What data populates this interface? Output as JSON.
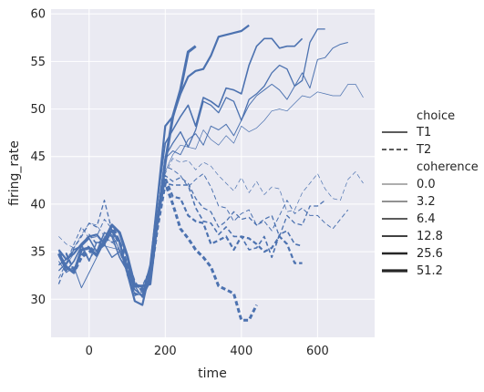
{
  "chart_data": {
    "type": "line",
    "xlabel": "time",
    "ylabel": "firing_rate",
    "xlim": [
      -100,
      750
    ],
    "ylim": [
      26,
      60.5
    ],
    "xticks": [
      0,
      200,
      400,
      600
    ],
    "yticks": [
      30,
      35,
      40,
      45,
      50,
      55,
      60
    ],
    "grid": true,
    "background": "#eaeaf2",
    "line_color": "#4c72b0",
    "legend": {
      "placement": "right",
      "choice_title": "choice",
      "choice_entries": [
        {
          "label": "T1",
          "dash": "solid"
        },
        {
          "label": "T2",
          "dash": "dashed"
        }
      ],
      "coherence_title": "coherence",
      "coherence_entries": [
        {
          "label": "0.0",
          "weight": 0.0
        },
        {
          "label": "3.2",
          "weight": 3.2
        },
        {
          "label": "6.4",
          "weight": 6.4
        },
        {
          "label": "12.8",
          "weight": 12.8
        },
        {
          "label": "25.6",
          "weight": 25.6
        },
        {
          "label": "51.2",
          "weight": 51.2
        }
      ]
    },
    "series": [
      {
        "choice": "T1",
        "coherence": 0.0,
        "x": [
          -80,
          -60,
          -40,
          -20,
          0,
          20,
          40,
          60,
          80,
          100,
          120,
          140,
          160,
          180,
          200,
          220,
          240,
          260,
          280,
          300,
          320,
          340,
          360,
          380,
          400,
          420,
          440,
          460,
          480,
          500,
          520,
          540,
          560,
          580,
          600,
          620,
          640,
          660,
          680,
          700,
          720
        ],
        "y": [
          35.0,
          33.6,
          34.8,
          35.8,
          34.2,
          35.2,
          35.6,
          35.4,
          35.2,
          33.2,
          31.6,
          31.2,
          33.4,
          38.6,
          43.4,
          45.2,
          46.2,
          46.0,
          45.8,
          47.8,
          46.8,
          46.2,
          47.2,
          46.4,
          48.2,
          47.6,
          48.0,
          48.8,
          49.8,
          50.0,
          49.8,
          50.6,
          51.4,
          51.2,
          51.8,
          51.6,
          51.4,
          51.4,
          52.6,
          52.6,
          51.2
        ]
      },
      {
        "choice": "T1",
        "coherence": 3.2,
        "x": [
          -80,
          -60,
          -40,
          -20,
          0,
          20,
          40,
          60,
          80,
          100,
          120,
          140,
          160,
          180,
          200,
          220,
          240,
          260,
          280,
          300,
          320,
          340,
          360,
          380,
          400,
          420,
          440,
          460,
          480,
          500,
          520,
          540,
          560,
          580,
          600,
          620,
          640,
          660,
          680
        ],
        "y": [
          34.0,
          32.8,
          33.4,
          31.2,
          32.8,
          34.4,
          36.4,
          36.8,
          35.2,
          32.8,
          30.6,
          30.4,
          32.2,
          37.8,
          44.8,
          45.6,
          45.2,
          46.8,
          47.4,
          46.2,
          48.2,
          47.8,
          48.4,
          47.2,
          48.8,
          50.4,
          51.4,
          52.0,
          52.6,
          52.0,
          51.0,
          52.4,
          53.8,
          52.2,
          55.2,
          55.4,
          56.4,
          56.8,
          57.0
        ]
      },
      {
        "choice": "T1",
        "coherence": 6.4,
        "x": [
          -80,
          -60,
          -40,
          -20,
          0,
          20,
          40,
          60,
          80,
          100,
          120,
          140,
          160,
          180,
          200,
          220,
          240,
          260,
          280,
          300,
          320,
          340,
          360,
          380,
          400,
          420,
          440,
          460,
          480,
          500,
          520,
          540,
          560,
          580,
          600,
          620
        ],
        "y": [
          33.0,
          33.8,
          35.2,
          35.6,
          34.0,
          36.0,
          35.8,
          34.4,
          35.0,
          33.6,
          31.4,
          30.2,
          31.8,
          39.0,
          45.0,
          46.4,
          47.6,
          46.0,
          47.8,
          50.8,
          50.4,
          49.6,
          51.2,
          50.8,
          48.8,
          51.0,
          51.6,
          52.4,
          53.8,
          54.6,
          54.2,
          52.4,
          53.0,
          57.0,
          58.4,
          58.4
        ]
      },
      {
        "choice": "T1",
        "coherence": 12.8,
        "x": [
          -80,
          -60,
          -40,
          -20,
          0,
          20,
          40,
          60,
          80,
          100,
          120,
          140,
          160,
          180,
          200,
          220,
          240,
          260,
          280,
          300,
          320,
          340,
          360,
          380,
          400,
          420,
          440,
          460,
          480,
          500,
          520,
          540,
          560
        ],
        "y": [
          34.6,
          33.0,
          34.0,
          35.6,
          36.4,
          35.0,
          37.0,
          36.6,
          34.4,
          33.0,
          31.0,
          30.4,
          33.6,
          40.4,
          46.4,
          47.8,
          49.2,
          50.4,
          48.2,
          51.2,
          50.8,
          50.2,
          52.2,
          52.0,
          51.6,
          54.6,
          56.6,
          57.4,
          57.4,
          56.4,
          56.6,
          56.6,
          57.4
        ]
      },
      {
        "choice": "T1",
        "coherence": 25.6,
        "x": [
          -80,
          -60,
          -40,
          -20,
          0,
          20,
          40,
          60,
          80,
          100,
          120,
          140,
          160,
          180,
          200,
          220,
          240,
          260,
          280,
          300,
          320,
          340,
          360,
          380,
          400,
          420
        ],
        "y": [
          35.2,
          34.2,
          34.8,
          35.8,
          36.6,
          36.8,
          35.8,
          37.2,
          36.0,
          32.8,
          29.8,
          29.4,
          33.0,
          40.6,
          48.2,
          49.2,
          51.6,
          53.4,
          54.0,
          54.2,
          55.6,
          57.6,
          57.8,
          58.0,
          58.2,
          58.8
        ]
      },
      {
        "choice": "T1",
        "coherence": 51.2,
        "x": [
          -80,
          -60,
          -40,
          -20,
          0,
          20,
          40,
          60,
          80,
          100,
          120,
          140,
          160,
          180,
          200,
          220,
          240,
          260,
          280
        ],
        "y": [
          34.8,
          33.4,
          32.8,
          35.2,
          35.4,
          34.6,
          36.2,
          37.8,
          37.0,
          34.6,
          31.4,
          31.4,
          31.6,
          38.4,
          44.4,
          49.2,
          52.0,
          56.0,
          56.6
        ]
      },
      {
        "choice": "T2",
        "coherence": 0.0,
        "x": [
          -80,
          -60,
          -40,
          -20,
          0,
          20,
          40,
          60,
          80,
          100,
          120,
          140,
          160,
          180,
          200,
          220,
          240,
          260,
          280,
          300,
          320,
          340,
          360,
          380,
          400,
          420,
          440,
          460,
          480,
          500,
          520,
          540,
          560,
          580,
          600,
          620,
          640,
          660,
          680,
          700,
          720
        ],
        "y": [
          36.6,
          35.8,
          35.4,
          36.8,
          38.0,
          37.8,
          36.6,
          36.0,
          35.2,
          33.8,
          31.4,
          31.0,
          33.4,
          38.4,
          43.2,
          44.8,
          44.4,
          44.6,
          43.6,
          44.4,
          44.0,
          43.0,
          42.2,
          41.4,
          42.8,
          41.2,
          42.4,
          41.0,
          41.8,
          41.6,
          39.2,
          39.4,
          41.2,
          42.2,
          43.2,
          41.6,
          40.6,
          40.4,
          42.6,
          43.4,
          42.2
        ]
      },
      {
        "choice": "T2",
        "coherence": 3.2,
        "x": [
          -80,
          -60,
          -40,
          -20,
          0,
          20,
          40,
          60,
          80,
          100,
          120,
          140,
          160,
          180,
          200,
          220,
          240,
          260,
          280,
          300,
          320,
          340,
          360,
          380,
          400,
          420,
          440,
          460,
          480,
          500,
          520,
          540,
          560,
          580,
          600,
          620,
          640,
          660,
          680
        ],
        "y": [
          32.2,
          33.8,
          35.8,
          37.6,
          36.4,
          36.6,
          38.4,
          37.4,
          36.2,
          34.4,
          32.0,
          30.6,
          32.8,
          39.0,
          44.0,
          43.6,
          43.0,
          41.8,
          42.6,
          43.2,
          41.8,
          39.8,
          39.6,
          38.2,
          39.0,
          39.4,
          37.8,
          38.2,
          37.2,
          38.8,
          40.4,
          39.0,
          39.6,
          38.8,
          38.8,
          38.0,
          37.4,
          38.4,
          39.4
        ]
      },
      {
        "choice": "T2",
        "coherence": 6.4,
        "x": [
          -80,
          -60,
          -40,
          -20,
          0,
          20,
          40,
          60,
          80,
          100,
          120,
          140,
          160,
          180,
          200,
          220,
          240,
          260,
          280,
          300,
          320,
          340,
          360,
          380,
          400,
          420,
          440,
          460,
          480,
          500,
          520,
          540,
          560,
          580,
          600,
          620
        ],
        "y": [
          31.6,
          33.6,
          35.4,
          36.6,
          38.0,
          37.6,
          40.4,
          37.2,
          35.0,
          33.0,
          31.6,
          31.4,
          33.2,
          38.0,
          43.0,
          42.4,
          42.8,
          42.2,
          40.6,
          39.6,
          39.2,
          37.6,
          38.2,
          39.2,
          38.4,
          38.6,
          37.8,
          38.4,
          38.8,
          36.6,
          38.8,
          38.0,
          37.8,
          39.8,
          39.8,
          40.4
        ]
      },
      {
        "choice": "T2",
        "coherence": 12.8,
        "x": [
          -80,
          -60,
          -40,
          -20,
          0,
          20,
          40,
          60,
          80,
          100,
          120,
          140,
          160,
          180,
          200,
          220,
          240,
          260,
          280,
          300,
          320,
          340,
          360,
          380,
          400,
          420,
          440,
          460,
          480,
          500,
          520,
          540,
          560
        ],
        "y": [
          33.6,
          34.2,
          35.2,
          35.6,
          36.8,
          35.8,
          36.4,
          36.0,
          36.2,
          32.6,
          30.4,
          30.8,
          32.8,
          37.6,
          42.2,
          42.0,
          42.0,
          42.0,
          39.6,
          38.2,
          38.0,
          36.8,
          37.6,
          36.6,
          36.6,
          35.2,
          35.4,
          36.6,
          34.4,
          36.8,
          37.2,
          35.8,
          35.6
        ]
      },
      {
        "choice": "T2",
        "coherence": 25.6,
        "x": [
          -80,
          -60,
          -40,
          -20,
          0,
          20,
          40,
          60,
          80,
          100,
          120,
          140,
          160,
          180,
          200,
          220,
          240,
          260,
          280,
          300,
          320,
          340,
          360,
          380,
          400,
          420,
          440,
          460,
          480,
          500,
          520,
          540,
          560
        ],
        "y": [
          34.6,
          34.8,
          33.0,
          34.6,
          35.6,
          34.8,
          36.4,
          37.2,
          35.8,
          33.6,
          30.6,
          30.4,
          32.2,
          38.2,
          42.8,
          40.8,
          40.6,
          38.8,
          38.2,
          38.0,
          35.8,
          36.2,
          36.6,
          35.2,
          36.6,
          36.4,
          35.8,
          35.0,
          35.4,
          36.6,
          35.8,
          33.8,
          33.8
        ]
      },
      {
        "choice": "T2",
        "coherence": 51.2,
        "x": [
          -80,
          -60,
          -40,
          -20,
          0,
          20,
          40,
          60,
          80,
          100,
          120,
          140,
          160,
          180,
          200,
          220,
          240,
          260,
          280,
          300,
          320,
          340,
          360,
          380,
          400,
          420,
          440
        ],
        "y": [
          34.8,
          33.4,
          32.8,
          34.4,
          35.0,
          35.0,
          35.8,
          37.8,
          36.0,
          33.6,
          31.6,
          31.0,
          32.0,
          37.6,
          42.2,
          40.0,
          37.4,
          36.4,
          35.2,
          34.4,
          33.4,
          31.4,
          31.0,
          30.6,
          27.8,
          27.8,
          29.4
        ]
      }
    ]
  }
}
